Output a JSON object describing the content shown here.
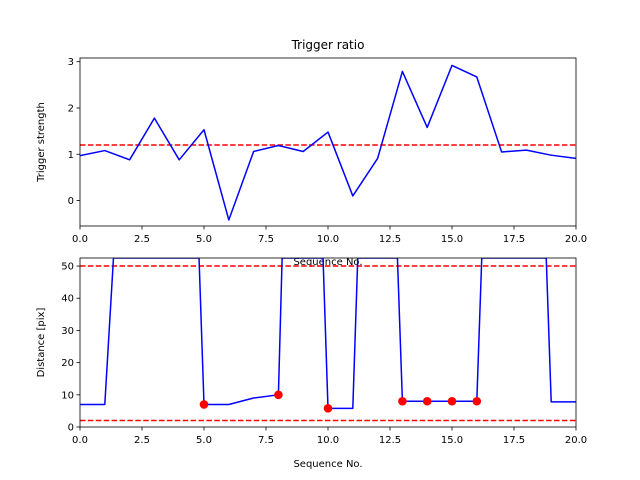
{
  "chart_data": [
    {
      "type": "line",
      "title": "Trigger ratio",
      "xlabel": "Sequence No.",
      "ylabel": "Trigger strength",
      "xlim": [
        0,
        20
      ],
      "ylim": [
        -0.55,
        3.08
      ],
      "xticks": [
        0,
        2.5,
        5,
        7.5,
        10,
        12.5,
        15,
        17.5,
        20
      ],
      "xtick_labels": [
        "0.0",
        "2.5",
        "5.0",
        "7.5",
        "10.0",
        "12.5",
        "15.0",
        "17.5",
        "20.0"
      ],
      "yticks": [
        0,
        1,
        2,
        3
      ],
      "ytick_labels": [
        "0",
        "1",
        "2",
        "3"
      ],
      "grid": false,
      "series": [
        {
          "color": "#0000ff",
          "style": "solid",
          "x": [
            0,
            1,
            2,
            3,
            4,
            5,
            6,
            7,
            8,
            9,
            10,
            11,
            12,
            13,
            14,
            15,
            16,
            17,
            18,
            19,
            20
          ],
          "values": [
            0.97,
            1.08,
            0.88,
            1.78,
            0.88,
            1.53,
            -0.42,
            1.06,
            1.19,
            1.06,
            1.48,
            0.1,
            0.91,
            2.79,
            1.58,
            2.92,
            2.67,
            1.05,
            1.09,
            0.98,
            0.91
          ]
        }
      ],
      "hlines": [
        {
          "y": 1.2,
          "color": "#ff0000",
          "style": "dashed"
        }
      ]
    },
    {
      "type": "line",
      "title": "",
      "xlabel": "Sequence No.",
      "ylabel": "Distance [pix]",
      "xlim": [
        0,
        20
      ],
      "ylim": [
        0,
        52.5
      ],
      "xticks": [
        0,
        2.5,
        5,
        7.5,
        10,
        12.5,
        15,
        17.5,
        20
      ],
      "xtick_labels": [
        "0.0",
        "2.5",
        "5.0",
        "7.5",
        "10.0",
        "12.5",
        "15.0",
        "17.5",
        "20.0"
      ],
      "yticks": [
        0,
        10,
        20,
        30,
        40,
        50
      ],
      "ytick_labels": [
        "0",
        "10",
        "20",
        "30",
        "40",
        "50"
      ],
      "grid": false,
      "series": [
        {
          "color": "#0000ff",
          "style": "solid",
          "x": [
            0,
            1,
            1.35,
            4.8,
            5,
            6,
            7,
            8,
            8.15,
            9.8,
            10,
            11,
            11.2,
            12.8,
            13,
            14,
            15,
            16,
            16.2,
            18.8,
            19,
            20
          ],
          "values": [
            7,
            7,
            52.5,
            52.5,
            7,
            7,
            9,
            10,
            52.5,
            52.5,
            5.8,
            5.8,
            52.5,
            52.5,
            8,
            8,
            8,
            8,
            52.5,
            52.5,
            7.8,
            7.8
          ]
        },
        {
          "type": "scatter",
          "color": "#ff0000",
          "x": [
            5,
            8,
            10,
            13,
            14,
            15,
            16
          ],
          "values": [
            7,
            10,
            5.8,
            8,
            8,
            8,
            8
          ]
        }
      ],
      "hlines": [
        {
          "y": 50,
          "color": "#ff0000",
          "style": "dashed"
        },
        {
          "y": 2,
          "color": "#ff0000",
          "style": "dashed"
        }
      ]
    }
  ]
}
